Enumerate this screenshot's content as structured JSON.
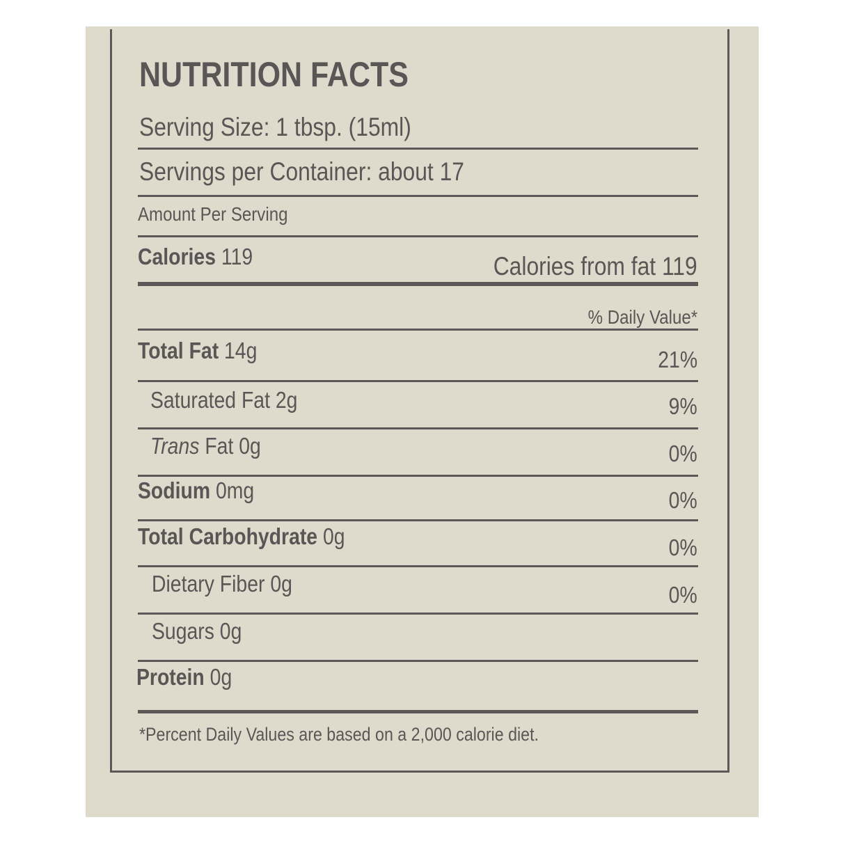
{
  "label": {
    "title": "NUTRITION FACTS",
    "serving_size": "Serving Size: 1 tbsp. (15ml)",
    "servings_per_container": "Servings per Container: about 17",
    "amount_per_serving": "Amount Per Serving",
    "calories": {
      "label": "Calories",
      "value": "119"
    },
    "calories_from_fat": "Calories from fat 119",
    "daily_value_header": "% Daily Value*",
    "nutrients": [
      {
        "label": "Total Fat",
        "amount": "14g",
        "dv": "21%"
      },
      {
        "label": "Saturated Fat",
        "amount": "2g",
        "dv": "9%"
      },
      {
        "label": "Trans",
        "amount": "Fat 0g",
        "dv": "0%"
      },
      {
        "label": "Sodium",
        "amount": "0mg",
        "dv": "0%"
      },
      {
        "label": "Total Carbohydrate",
        "amount": "0g",
        "dv": "0%"
      },
      {
        "label": "Dietary Fiber",
        "amount": "0g",
        "dv": "0%"
      },
      {
        "label": "Sugars",
        "amount": "0g",
        "dv": ""
      },
      {
        "label": "Protein",
        "amount": "0g",
        "dv": ""
      }
    ],
    "footnote": "*Percent Daily Values are based on a 2,000 calorie diet."
  },
  "colors": {
    "background": "#dedbcc",
    "ink": "#5a5656"
  }
}
